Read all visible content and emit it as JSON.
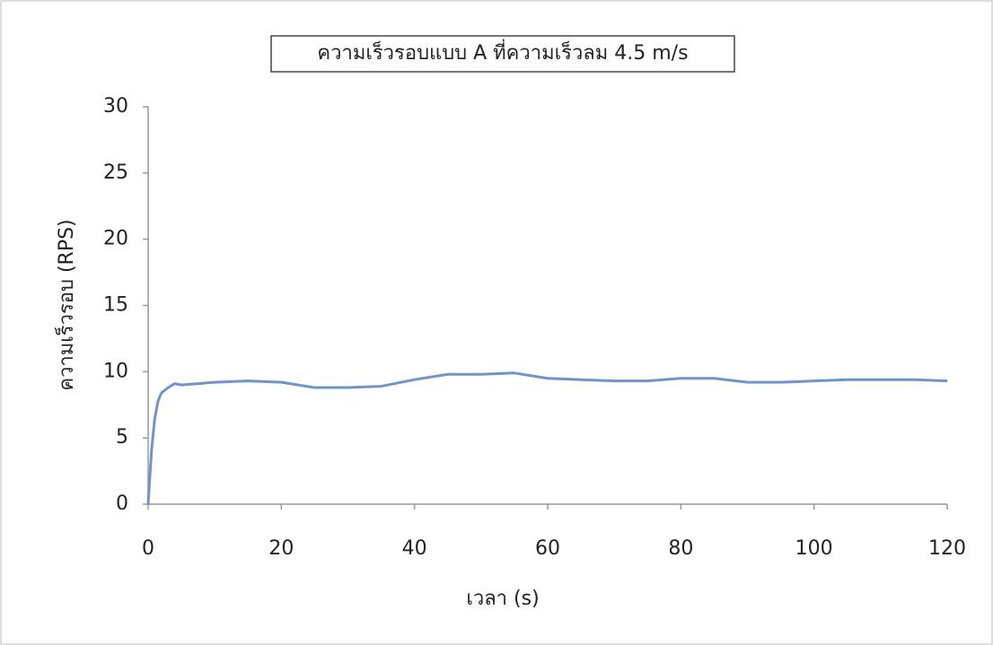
{
  "chart_data": {
    "type": "line",
    "title": "ความเร็วรอบแบบ A ที่ความเร็วลม 4.5 m/s",
    "x_label": "เวลา (s)",
    "y_label": "ความเร็วรอบ (RPS)",
    "x": [
      0,
      0.5,
      1,
      1.5,
      2,
      3,
      4,
      5,
      10,
      15,
      20,
      25,
      30,
      35,
      40,
      45,
      50,
      55,
      60,
      65,
      70,
      75,
      80,
      85,
      90,
      95,
      100,
      105,
      110,
      115,
      120
    ],
    "values": [
      0,
      4,
      6.5,
      7.8,
      8.4,
      8.8,
      9.1,
      9.0,
      9.2,
      9.3,
      9.2,
      8.8,
      8.8,
      8.9,
      9.4,
      9.8,
      9.8,
      9.9,
      9.5,
      9.4,
      9.3,
      9.3,
      9.5,
      9.5,
      9.2,
      9.2,
      9.3,
      9.4,
      9.4,
      9.4,
      9.3
    ],
    "color": "#7094c8",
    "xlim": [
      0,
      120
    ],
    "xticks": [
      0,
      20,
      40,
      60,
      80,
      100,
      120
    ],
    "ylim": [
      0,
      30
    ],
    "yticks": [
      0,
      5,
      10,
      15,
      20,
      25,
      30
    ],
    "grid": false
  }
}
